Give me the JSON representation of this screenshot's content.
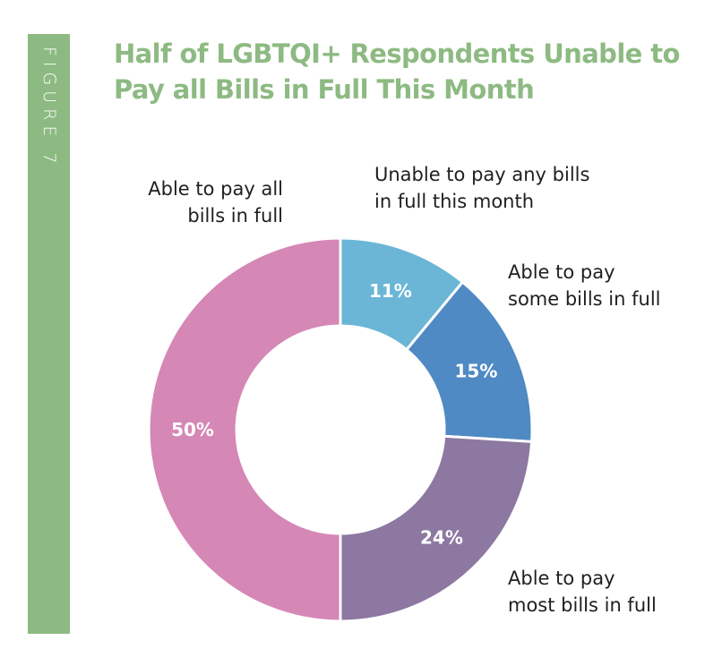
{
  "figure_label": "FIGURE 7",
  "title": "Half of LGBTQI+ Respondents Unable to Pay all Bills in Full This Month",
  "colors": {
    "accent": "#8dba82",
    "unable": "#6bb6d6",
    "some": "#4f8ac4",
    "most": "#8c78a0",
    "all": "#d587b6"
  },
  "chart_data": {
    "type": "pie",
    "donut": true,
    "title": "Half of LGBTQI+ Respondents Unable to Pay all Bills in Full This Month",
    "slices": [
      {
        "label": "Unable to pay any bills in full this month",
        "label_lines": [
          "Unable to pay any bills",
          "in full this month"
        ],
        "value": 11,
        "display": "11%",
        "color": "#6bb6d6"
      },
      {
        "label": "Able to pay some bills in full",
        "label_lines": [
          "Able to pay",
          "some bills in full"
        ],
        "value": 15,
        "display": "15%",
        "color": "#4f8ac4"
      },
      {
        "label": "Able to pay most bills in full",
        "label_lines": [
          "Able to pay",
          "most bills in full"
        ],
        "value": 24,
        "display": "24%",
        "color": "#8c78a0"
      },
      {
        "label": "Able to pay all bills in full",
        "label_lines": [
          "Able to pay all",
          "bills in full"
        ],
        "value": 50,
        "display": "50%",
        "color": "#d587b6"
      }
    ]
  }
}
